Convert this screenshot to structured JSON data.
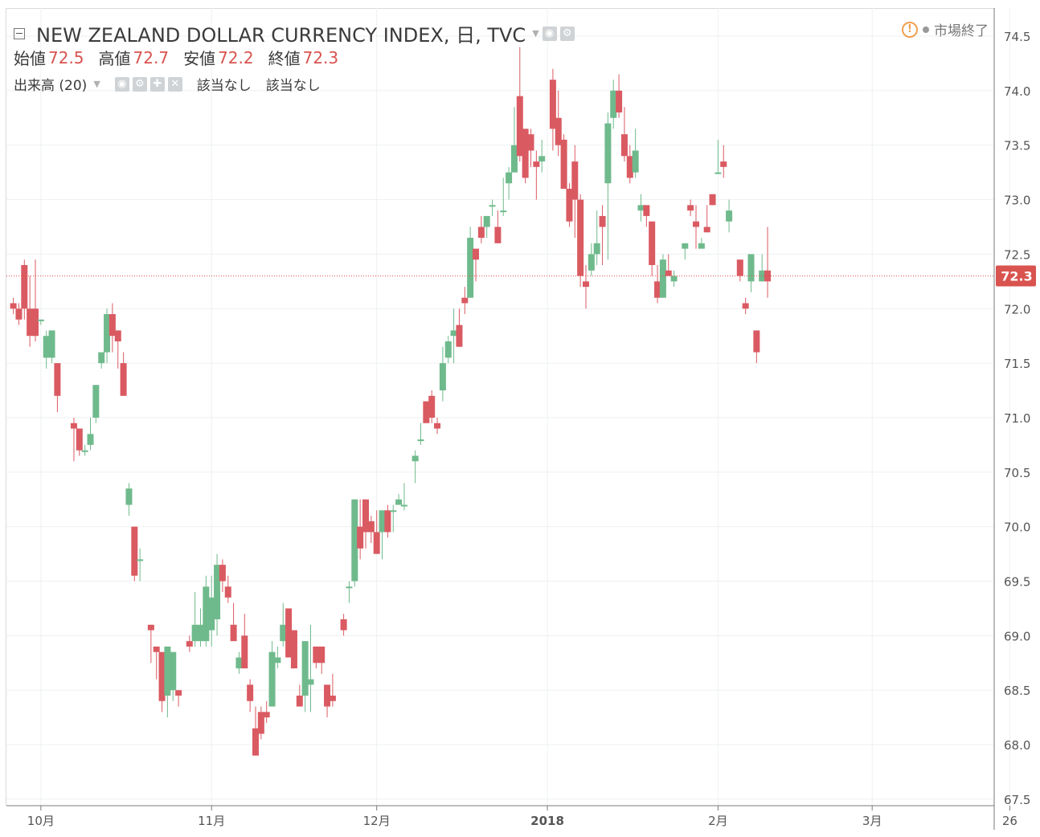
{
  "header": {
    "title": "NEW ZEALAND DOLLAR CURRENCY INDEX, 日, TVC",
    "ohlc": {
      "open_label": "始値",
      "open": "72.5",
      "high_label": "高値",
      "high": "72.7",
      "low_label": "安値",
      "low": "72.2",
      "close_label": "終値",
      "close": "72.3"
    },
    "volume_label": "出来高 (20)",
    "volume_na_1": "該当なし",
    "volume_na_2": "該当なし"
  },
  "status": {
    "market": "市場終了"
  },
  "colors": {
    "up": "#6fba8c",
    "down": "#da5a62",
    "price_marker": "#d9534f"
  },
  "chart_data": {
    "type": "candlestick",
    "title": "NEW ZEALAND DOLLAR CURRENCY INDEX",
    "ylim": [
      67.4,
      74.6
    ],
    "y_ticks": [
      "67.5",
      "68.0",
      "68.5",
      "69.0",
      "69.5",
      "70.0",
      "70.5",
      "71.0",
      "71.5",
      "72.0",
      "72.5",
      "73.0",
      "73.5",
      "74.0",
      "74.5"
    ],
    "x_tick_labels": [
      {
        "label": "10月",
        "day": 1
      },
      {
        "label": "11月",
        "day": 32
      },
      {
        "label": "12月",
        "day": 62
      },
      {
        "label": "2018",
        "day": 93
      },
      {
        "label": "2月",
        "day": 124
      },
      {
        "label": "3月",
        "day": 152
      },
      {
        "label": "26",
        "day": 177
      }
    ],
    "last_price": "72.3",
    "series": [
      [
        -4,
        72.05,
        72.1,
        71.95,
        72.0
      ],
      [
        -3,
        72.0,
        72.05,
        71.85,
        71.9
      ],
      [
        -2,
        72.4,
        72.45,
        71.9,
        72.0
      ],
      [
        -1,
        72.0,
        72.3,
        71.65,
        71.75
      ],
      [
        0,
        72.0,
        72.45,
        71.7,
        71.75
      ],
      [
        1,
        71.9,
        71.9,
        71.85,
        71.9
      ],
      [
        2,
        71.55,
        71.8,
        71.45,
        71.75
      ],
      [
        3,
        71.55,
        71.8,
        71.5,
        71.8
      ],
      [
        4,
        71.5,
        71.5,
        71.05,
        71.2
      ],
      [
        7,
        70.95,
        71.0,
        70.6,
        70.9
      ],
      [
        8,
        70.9,
        70.9,
        70.65,
        70.7
      ],
      [
        9,
        70.7,
        70.75,
        70.65,
        70.7
      ],
      [
        10,
        70.75,
        71.0,
        70.7,
        70.85
      ],
      [
        11,
        71.0,
        71.2,
        70.95,
        71.3
      ],
      [
        12,
        71.5,
        71.6,
        71.45,
        71.6
      ],
      [
        13,
        71.6,
        72.0,
        71.5,
        71.95
      ],
      [
        14,
        71.95,
        72.05,
        71.6,
        71.75
      ],
      [
        15,
        71.8,
        71.8,
        71.45,
        71.7
      ],
      [
        16,
        71.5,
        71.6,
        71.25,
        71.2
      ],
      [
        17,
        70.2,
        70.4,
        70.1,
        70.35
      ],
      [
        18,
        70.0,
        70.0,
        69.5,
        69.55
      ],
      [
        19,
        69.7,
        69.8,
        69.5,
        69.7
      ],
      [
        21,
        69.1,
        69.1,
        68.75,
        69.05
      ],
      [
        22,
        68.9,
        68.9,
        68.6,
        68.85
      ],
      [
        23,
        68.85,
        68.8,
        68.3,
        68.4
      ],
      [
        24,
        68.45,
        68.6,
        68.25,
        68.9
      ],
      [
        25,
        68.5,
        68.85,
        68.4,
        68.85
      ],
      [
        26,
        68.5,
        68.5,
        68.35,
        68.45
      ],
      [
        28,
        68.95,
        69.0,
        68.85,
        68.9
      ],
      [
        29,
        68.95,
        69.4,
        68.9,
        69.1
      ],
      [
        30,
        68.95,
        69.25,
        68.9,
        69.1
      ],
      [
        31,
        68.95,
        69.55,
        68.9,
        69.45
      ],
      [
        32,
        69.05,
        69.55,
        68.9,
        69.35
      ],
      [
        33,
        69.15,
        69.75,
        69.0,
        69.65
      ],
      [
        34,
        69.65,
        69.7,
        69.4,
        69.5
      ],
      [
        35,
        69.45,
        69.55,
        69.3,
        69.35
      ],
      [
        36,
        69.1,
        69.3,
        68.95,
        68.95
      ],
      [
        37,
        68.7,
        68.85,
        68.65,
        68.8
      ],
      [
        38,
        69.0,
        69.2,
        68.75,
        68.7
      ],
      [
        39,
        68.55,
        68.6,
        68.3,
        68.4
      ],
      [
        40,
        68.15,
        68.35,
        67.9,
        67.9
      ],
      [
        41,
        68.3,
        68.35,
        68.05,
        68.1
      ],
      [
        42,
        68.3,
        68.4,
        68.2,
        68.25
      ],
      [
        43,
        68.35,
        68.95,
        68.35,
        68.85
      ],
      [
        44,
        68.75,
        68.9,
        68.7,
        68.8
      ],
      [
        45,
        68.95,
        69.3,
        68.9,
        69.1
      ],
      [
        46,
        69.25,
        69.25,
        68.9,
        68.8
      ],
      [
        47,
        69.05,
        69.05,
        68.75,
        68.7
      ],
      [
        48,
        68.45,
        68.55,
        68.35,
        68.35
      ],
      [
        49,
        68.45,
        68.95,
        68.3,
        68.95
      ],
      [
        50,
        68.55,
        69.1,
        68.3,
        68.6
      ],
      [
        51,
        68.9,
        68.9,
        68.7,
        68.75
      ],
      [
        52,
        68.9,
        68.9,
        68.65,
        68.75
      ],
      [
        53,
        68.55,
        68.55,
        68.25,
        68.35
      ],
      [
        54,
        68.45,
        68.65,
        68.35,
        68.4
      ],
      [
        56,
        69.15,
        69.2,
        69.0,
        69.05
      ],
      [
        57,
        69.45,
        69.5,
        69.3,
        69.45
      ],
      [
        58,
        69.5,
        70.25,
        69.45,
        70.25
      ],
      [
        59,
        70.0,
        70.25,
        69.7,
        69.8
      ],
      [
        60,
        70.25,
        70.25,
        69.8,
        69.95
      ],
      [
        61,
        70.05,
        70.1,
        69.85,
        69.95
      ],
      [
        62,
        69.95,
        70.15,
        69.75,
        69.75
      ],
      [
        63,
        69.95,
        70.15,
        69.7,
        70.15
      ],
      [
        64,
        70.15,
        70.2,
        69.9,
        69.95
      ],
      [
        65,
        70.15,
        70.2,
        69.95,
        70.15
      ],
      [
        66,
        70.2,
        70.3,
        70.2,
        70.25
      ],
      [
        67,
        70.2,
        70.4,
        70.15,
        70.2
      ],
      [
        69,
        70.6,
        70.7,
        70.4,
        70.65
      ],
      [
        70,
        70.8,
        70.95,
        70.75,
        70.8
      ],
      [
        71,
        71.15,
        71.15,
        70.95,
        70.95
      ],
      [
        72,
        71.2,
        71.25,
        70.95,
        71.0
      ],
      [
        73,
        70.95,
        71.0,
        70.85,
        70.9
      ],
      [
        74,
        71.25,
        71.65,
        71.15,
        71.5
      ],
      [
        75,
        71.55,
        71.75,
        71.5,
        71.7
      ],
      [
        76,
        71.75,
        72.0,
        71.5,
        71.8
      ],
      [
        77,
        71.85,
        72.0,
        71.7,
        71.65
      ],
      [
        78,
        72.1,
        72.2,
        71.95,
        72.05
      ],
      [
        79,
        72.1,
        72.75,
        72.1,
        72.65
      ],
      [
        80,
        72.55,
        72.55,
        72.25,
        72.45
      ],
      [
        81,
        72.75,
        72.85,
        72.6,
        72.65
      ],
      [
        82,
        72.75,
        72.8,
        72.65,
        72.85
      ],
      [
        83,
        72.95,
        73.0,
        72.85,
        72.95
      ],
      [
        84,
        72.75,
        72.9,
        72.65,
        72.6
      ],
      [
        85,
        72.9,
        73.2,
        72.85,
        72.9
      ],
      [
        86,
        73.15,
        73.3,
        73.0,
        73.25
      ],
      [
        87,
        73.25,
        73.85,
        73.25,
        73.5
      ],
      [
        88,
        73.95,
        74.4,
        73.35,
        73.4
      ],
      [
        89,
        73.65,
        73.65,
        73.15,
        73.2
      ],
      [
        90,
        73.6,
        73.65,
        73.3,
        73.45
      ],
      [
        91,
        73.35,
        73.45,
        73.0,
        73.3
      ],
      [
        92,
        73.35,
        73.55,
        73.25,
        73.4
      ],
      [
        94,
        74.1,
        74.2,
        73.45,
        73.65
      ],
      [
        95,
        73.75,
        74.0,
        73.4,
        73.5
      ],
      [
        96,
        73.55,
        73.6,
        73.15,
        73.1
      ],
      [
        97,
        73.1,
        73.15,
        72.75,
        72.8
      ],
      [
        98,
        73.35,
        73.5,
        72.65,
        73.0
      ],
      [
        99,
        73.0,
        73.05,
        72.2,
        72.3
      ],
      [
        100,
        72.25,
        72.4,
        72.0,
        72.2
      ],
      [
        101,
        72.35,
        72.6,
        72.3,
        72.5
      ],
      [
        102,
        72.5,
        72.9,
        72.4,
        72.6
      ],
      [
        103,
        72.85,
        72.95,
        72.4,
        72.75
      ],
      [
        104,
        73.15,
        73.8,
        72.45,
        73.7
      ],
      [
        105,
        73.75,
        74.1,
        73.65,
        74.0
      ],
      [
        106,
        74.0,
        74.15,
        73.75,
        73.8
      ],
      [
        107,
        73.6,
        73.85,
        73.35,
        73.4
      ],
      [
        108,
        73.4,
        73.5,
        73.15,
        73.2
      ],
      [
        109,
        73.25,
        73.65,
        73.2,
        73.45
      ],
      [
        110,
        72.9,
        73.05,
        72.8,
        72.95
      ],
      [
        111,
        72.95,
        72.95,
        72.75,
        72.85
      ],
      [
        112,
        72.8,
        72.8,
        72.3,
        72.4
      ],
      [
        113,
        72.25,
        72.4,
        72.05,
        72.1
      ],
      [
        114,
        72.1,
        72.5,
        72.1,
        72.45
      ],
      [
        115,
        72.35,
        72.5,
        72.3,
        72.3
      ],
      [
        116,
        72.25,
        72.35,
        72.2,
        72.3
      ],
      [
        118,
        72.55,
        72.55,
        72.45,
        72.6
      ],
      [
        119,
        72.95,
        73.0,
        72.85,
        72.9
      ],
      [
        120,
        72.8,
        72.95,
        72.55,
        72.75
      ],
      [
        121,
        72.55,
        72.65,
        72.55,
        72.6
      ],
      [
        122,
        72.75,
        72.95,
        72.75,
        72.7
      ],
      [
        123,
        73.05,
        73.0,
        72.95,
        72.95
      ],
      [
        124,
        73.25,
        73.55,
        73.25,
        73.25
      ],
      [
        125,
        73.35,
        73.5,
        73.2,
        73.3
      ],
      [
        126,
        72.8,
        73.0,
        72.7,
        72.9
      ],
      [
        128,
        72.45,
        72.45,
        72.25,
        72.3
      ],
      [
        129,
        72.05,
        72.1,
        71.95,
        72.0
      ],
      [
        130,
        72.25,
        72.5,
        72.15,
        72.5
      ],
      [
        131,
        71.8,
        71.8,
        71.5,
        71.6
      ],
      [
        132,
        72.25,
        72.5,
        72.25,
        72.35
      ],
      [
        133,
        72.35,
        72.75,
        72.1,
        72.25
      ]
    ]
  }
}
